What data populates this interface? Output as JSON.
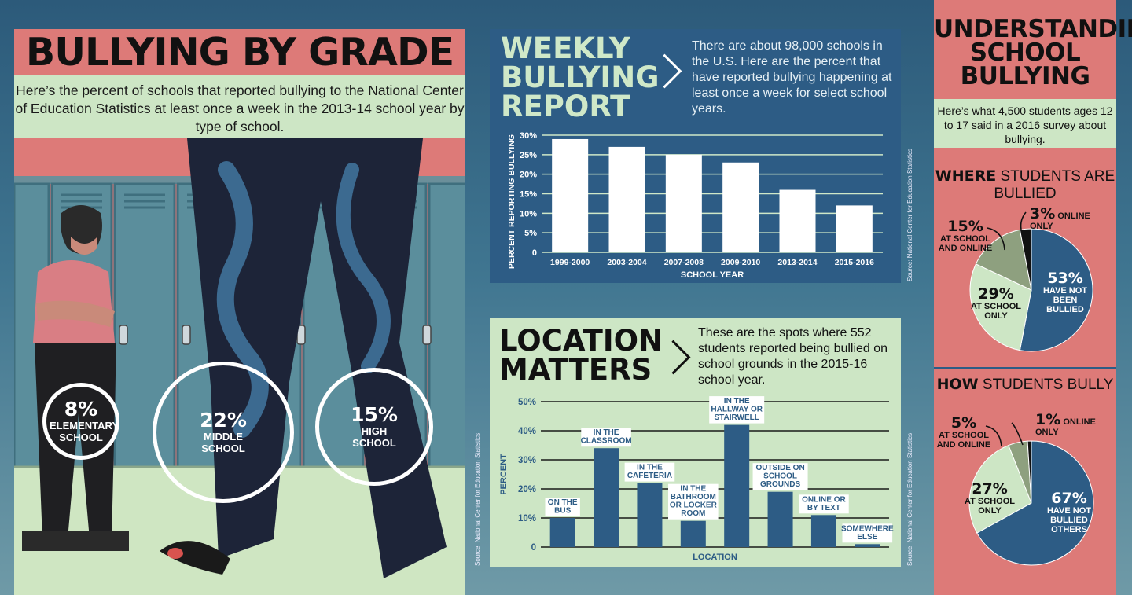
{
  "bullying_by_grade": {
    "title": "BULLYING BY GRADE",
    "description": "Here’s the percent of schools that reported bullying to the National Center of Education Statistics at least once a week in the 2013-14 school year by type of school.",
    "stats": [
      {
        "pct": "8%",
        "label": "ELEMENTARY SCHOOL"
      },
      {
        "pct": "22%",
        "label": "MIDDLE SCHOOL"
      },
      {
        "pct": "15%",
        "label": "HIGH SCHOOL"
      }
    ]
  },
  "weekly": {
    "title": "WEEKLY BULLYING REPORT",
    "description": "There are about 98,000 schools in the U.S. Here are the percent that have reported bullying happening at least once a week for select school years.",
    "source": "Source: National Center for Education Statistics"
  },
  "location": {
    "title": "LOCATION MATTERS",
    "description": "These are the spots where 552 students reported being bullied on school grounds in the 2015-16 school year.",
    "source": "Source: National Center for Education Statistics",
    "left_source": "Source: National Center for Education Statistics"
  },
  "understanding": {
    "title": "UNDERSTANDING SCHOOL BULLYING",
    "description": "Here’s what 4,500 students ages 12 to 17 said in a 2016 survey about bullying.",
    "where_title_bold": "WHERE",
    "where_title_rest": " STUDENTS ARE BULLIED",
    "how_title_bold": "HOW",
    "how_title_rest": " STUDENTS BULLY"
  },
  "colors": {
    "navy": "#2d5c85",
    "green": "#cde6c5",
    "olive": "#8ea07f",
    "salmon": "#dd7a78",
    "black": "#111111",
    "white": "#ffffff"
  },
  "chart_data": [
    {
      "type": "bar",
      "categories": [
        "1999-2000",
        "2003-2004",
        "2007-2008",
        "2009-2010",
        "2013-2014",
        "2015-2016"
      ],
      "values": [
        29,
        27,
        25,
        23,
        16,
        12
      ],
      "xlabel": "SCHOOL YEAR",
      "ylabel": "PERCENT REPORTING BULLYING",
      "yticks": [
        "0",
        "5%",
        "10%",
        "15%",
        "20%",
        "25%",
        "30%"
      ],
      "ylim": [
        0,
        30
      ],
      "grid": true
    },
    {
      "type": "bar",
      "categories": [
        "ON THE BUS",
        "IN THE CLASSROOM",
        "IN THE CAFETERIA",
        "IN THE BATHROOM OR LOCKER ROOM",
        "IN THE HALLWAY OR STAIRWELL",
        "OUTSIDE ON SCHOOL GROUNDS",
        "ONLINE OR BY TEXT",
        "SOMEWHERE ELSE"
      ],
      "values": [
        10,
        34,
        22,
        9,
        42,
        19,
        11,
        1
      ],
      "xlabel": "LOCATION",
      "ylabel": "PERCENT",
      "yticks": [
        "0",
        "10%",
        "20%",
        "30%",
        "40%",
        "50%"
      ],
      "ylim": [
        0,
        50
      ],
      "grid": true
    },
    {
      "type": "pie",
      "title": "WHERE STUDENTS ARE BULLIED",
      "slices": [
        {
          "label": "HAVE NOT BEEN BULLIED",
          "value": 53,
          "text": "53%"
        },
        {
          "label": "AT SCHOOL ONLY",
          "value": 29,
          "text": "29%"
        },
        {
          "label": "AT SCHOOL AND ONLINE",
          "value": 15,
          "text": "15%"
        },
        {
          "label": "ONLINE ONLY",
          "value": 3,
          "text": "3%"
        }
      ]
    },
    {
      "type": "pie",
      "title": "HOW STUDENTS BULLY",
      "slices": [
        {
          "label": "HAVE NOT BULLIED OTHERS",
          "value": 67,
          "text": "67%"
        },
        {
          "label": "AT SCHOOL ONLY",
          "value": 27,
          "text": "27%"
        },
        {
          "label": "AT SCHOOL AND ONLINE",
          "value": 5,
          "text": "5%"
        },
        {
          "label": "ONLINE ONLY",
          "value": 1,
          "text": "1%"
        }
      ]
    }
  ]
}
